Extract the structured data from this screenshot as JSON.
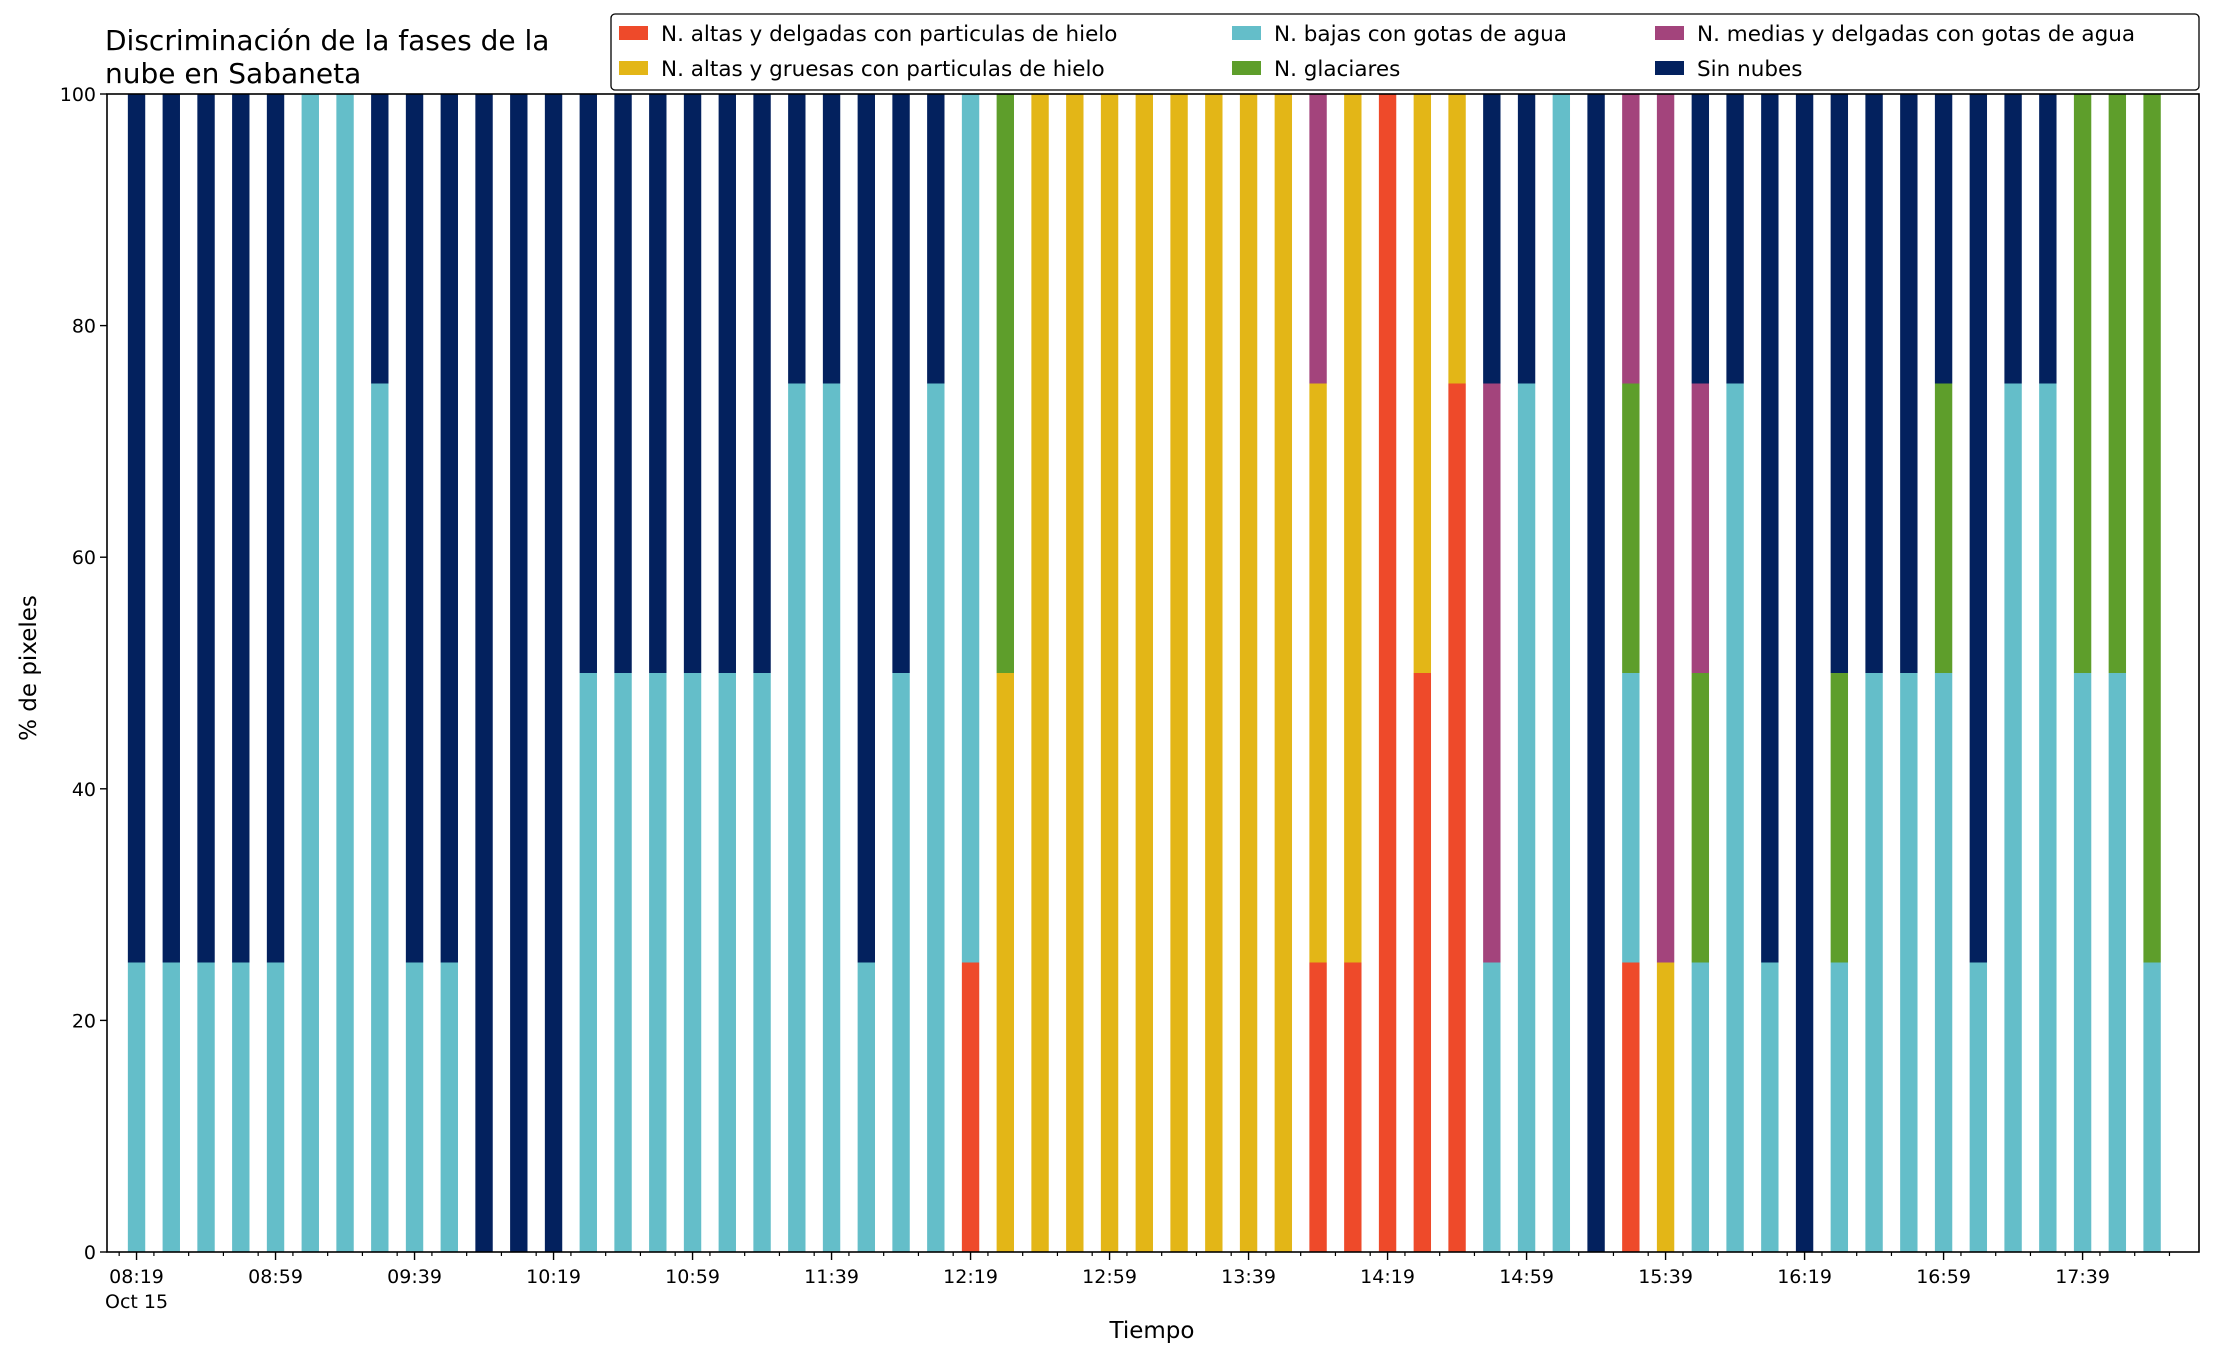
{
  "chart_data": {
    "type": "bar",
    "stacked": true,
    "title_lines": [
      "Discriminación de la fases de la",
      "nube en Sabaneta"
    ],
    "xlabel": "Tiempo",
    "ylabel": "% de pixeles",
    "ylim": [
      0,
      100
    ],
    "yticks": [
      0,
      20,
      40,
      60,
      80,
      100
    ],
    "x_step_minutes": 10,
    "x_tick_labels": [
      {
        "index": 0,
        "label": "08:19",
        "sublabel": "Oct 15"
      },
      {
        "index": 4,
        "label": "08:59"
      },
      {
        "index": 8,
        "label": "09:39"
      },
      {
        "index": 12,
        "label": "10:19"
      },
      {
        "index": 16,
        "label": "10:59"
      },
      {
        "index": 20,
        "label": "11:39"
      },
      {
        "index": 24,
        "label": "12:19"
      },
      {
        "index": 28,
        "label": "12:59"
      },
      {
        "index": 32,
        "label": "13:39"
      },
      {
        "index": 36,
        "label": "14:19"
      },
      {
        "index": 40,
        "label": "14:59"
      },
      {
        "index": 44,
        "label": "15:39"
      },
      {
        "index": 48,
        "label": "16:19"
      },
      {
        "index": 52,
        "label": "16:59"
      },
      {
        "index": 56,
        "label": "17:39"
      }
    ],
    "legend_position": "top-right",
    "series": [
      {
        "name": "N. altas y delgadas con particulas de hielo",
        "color": "#ee4a2a",
        "values": [
          0,
          0,
          0,
          0,
          0,
          0,
          0,
          0,
          0,
          0,
          0,
          0,
          0,
          0,
          0,
          0,
          0,
          0,
          0,
          0,
          0,
          0,
          0,
          0,
          25,
          0,
          0,
          0,
          0,
          0,
          0,
          0,
          0,
          0,
          25,
          25,
          100,
          50,
          75,
          0,
          0,
          0,
          0,
          25,
          0,
          0,
          0,
          0,
          0,
          0,
          0,
          0,
          0,
          0,
          0,
          0,
          0,
          0,
          0
        ]
      },
      {
        "name": "N. altas y gruesas con particulas de hielo",
        "color": "#e3b617",
        "values": [
          0,
          0,
          0,
          0,
          0,
          0,
          0,
          0,
          0,
          0,
          0,
          0,
          0,
          0,
          0,
          0,
          0,
          0,
          0,
          0,
          0,
          0,
          0,
          0,
          0,
          50,
          100,
          100,
          100,
          100,
          100,
          100,
          100,
          100,
          50,
          75,
          0,
          50,
          25,
          0,
          0,
          0,
          0,
          0,
          25,
          0,
          0,
          0,
          0,
          0,
          0,
          0,
          0,
          0,
          0,
          0,
          0,
          0,
          0
        ]
      },
      {
        "name": "N. bajas con gotas de agua",
        "color": "#64bec9",
        "values": [
          25,
          25,
          25,
          25,
          25,
          100,
          100,
          75,
          25,
          25,
          0,
          0,
          0,
          50,
          50,
          50,
          50,
          50,
          50,
          75,
          75,
          25,
          50,
          75,
          75,
          0,
          0,
          0,
          0,
          0,
          0,
          0,
          0,
          0,
          0,
          0,
          0,
          0,
          0,
          25,
          75,
          100,
          0,
          25,
          0,
          25,
          75,
          25,
          0,
          25,
          50,
          50,
          50,
          25,
          75,
          75,
          50,
          50,
          25
        ]
      },
      {
        "name": "N. glaciares",
        "color": "#5e9e2b",
        "values": [
          0,
          0,
          0,
          0,
          0,
          0,
          0,
          0,
          0,
          0,
          0,
          0,
          0,
          0,
          0,
          0,
          0,
          0,
          0,
          0,
          0,
          0,
          0,
          0,
          0,
          50,
          0,
          0,
          0,
          0,
          0,
          0,
          0,
          0,
          0,
          0,
          0,
          0,
          0,
          0,
          0,
          0,
          0,
          25,
          0,
          25,
          0,
          0,
          0,
          25,
          0,
          0,
          25,
          0,
          0,
          0,
          50,
          50,
          75
        ]
      },
      {
        "name": "N. medias y delgadas con gotas de agua",
        "color": "#a3447c",
        "values": [
          0,
          0,
          0,
          0,
          0,
          0,
          0,
          0,
          0,
          0,
          0,
          0,
          0,
          0,
          0,
          0,
          0,
          0,
          0,
          0,
          0,
          0,
          0,
          0,
          0,
          0,
          0,
          0,
          0,
          0,
          0,
          0,
          0,
          0,
          25,
          0,
          0,
          0,
          0,
          50,
          0,
          0,
          0,
          25,
          75,
          25,
          0,
          0,
          0,
          0,
          0,
          0,
          0,
          0,
          0,
          0,
          0,
          0,
          0
        ]
      },
      {
        "name": "Sin nubes",
        "color": "#03215e",
        "values": [
          75,
          75,
          75,
          75,
          75,
          0,
          0,
          25,
          75,
          75,
          100,
          100,
          100,
          50,
          50,
          50,
          50,
          50,
          50,
          25,
          25,
          75,
          50,
          25,
          0,
          0,
          0,
          0,
          0,
          0,
          0,
          0,
          0,
          0,
          0,
          0,
          0,
          0,
          0,
          25,
          25,
          0,
          100,
          0,
          0,
          25,
          25,
          75,
          100,
          50,
          50,
          50,
          25,
          75,
          25,
          25,
          0,
          0,
          0
        ]
      }
    ]
  }
}
